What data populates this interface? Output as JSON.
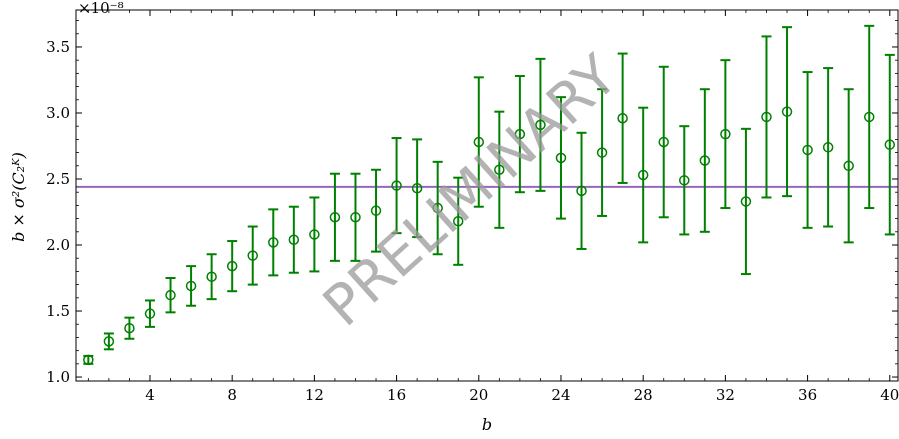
{
  "chart_data": {
    "type": "scatter",
    "xlabel": "b",
    "ylabel": "b × σ²(C₂ᴷ)",
    "offset_label": "×10⁻⁸",
    "watermark": "PRELIMINARY",
    "xlim": [
      0.4,
      40.4
    ],
    "ylim": [
      0.97,
      3.78
    ],
    "x_ticks": [
      4,
      8,
      12,
      16,
      20,
      24,
      28,
      32,
      36,
      40
    ],
    "y_ticks": [
      1.0,
      1.5,
      2.0,
      2.5,
      3.0,
      3.5
    ],
    "y_tick_labels": [
      "1.0",
      "1.5",
      "2.0",
      "2.5",
      "3.0",
      "3.5"
    ],
    "grid": false,
    "reference_line": {
      "y": 2.44,
      "color": "#9467bd"
    },
    "series": [
      {
        "color": "#008000",
        "marker": "open-circle",
        "x": [
          1,
          2,
          3,
          4,
          5,
          6,
          7,
          8,
          9,
          10,
          11,
          12,
          13,
          14,
          15,
          16,
          17,
          18,
          19,
          20,
          21,
          22,
          23,
          24,
          25,
          26,
          27,
          28,
          29,
          30,
          31,
          32,
          33,
          34,
          35,
          36,
          37,
          38,
          39,
          40
        ],
        "y": [
          1.13,
          1.27,
          1.37,
          1.48,
          1.62,
          1.69,
          1.76,
          1.84,
          1.92,
          2.02,
          2.04,
          2.08,
          2.21,
          2.21,
          2.26,
          2.45,
          2.43,
          2.28,
          2.18,
          2.78,
          2.57,
          2.84,
          2.91,
          2.66,
          2.41,
          2.7,
          2.96,
          2.53,
          2.78,
          2.49,
          2.64,
          2.84,
          2.33,
          2.97,
          3.01,
          2.72,
          2.74,
          2.6,
          2.97,
          2.76
        ],
        "yerr": [
          0.03,
          0.06,
          0.08,
          0.1,
          0.13,
          0.15,
          0.17,
          0.19,
          0.22,
          0.25,
          0.25,
          0.28,
          0.33,
          0.33,
          0.31,
          0.36,
          0.37,
          0.35,
          0.33,
          0.49,
          0.44,
          0.44,
          0.5,
          0.46,
          0.44,
          0.48,
          0.49,
          0.51,
          0.57,
          0.41,
          0.54,
          0.56,
          0.55,
          0.61,
          0.64,
          0.59,
          0.6,
          0.58,
          0.69,
          0.68
        ]
      }
    ]
  }
}
